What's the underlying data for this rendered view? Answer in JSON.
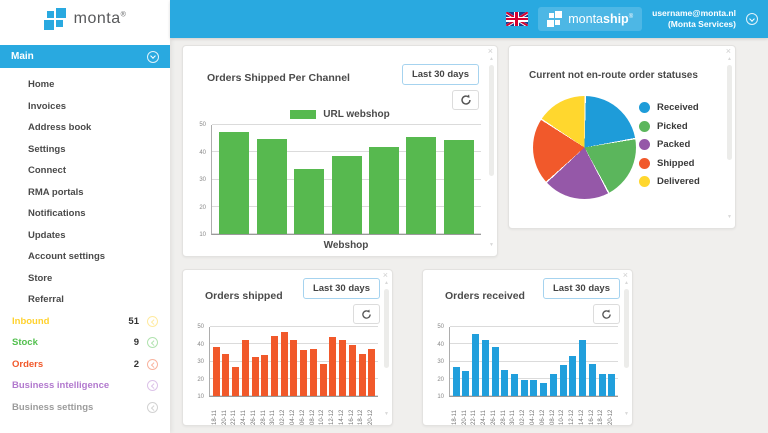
{
  "header": {
    "brand": "monta",
    "brand_reg": "®",
    "app_prefix": "monta",
    "app_suffix": "ship",
    "app_reg": "®",
    "user_email": "username@monta.nl",
    "user_org": "(Monta Services)"
  },
  "ui": {
    "close_glyph": "×",
    "scroll_up": "▲",
    "scroll_down": "▼"
  },
  "sidebar": {
    "main_label": "Main",
    "items": [
      "Home",
      "Invoices",
      "Address book",
      "Settings",
      "Connect",
      "RMA portals",
      "Notifications",
      "Updates",
      "Account settings",
      "Store",
      "Referral"
    ],
    "sections": [
      {
        "label": "Inbound",
        "count": "51",
        "color": "#FFD22E"
      },
      {
        "label": "Stock",
        "count": "9",
        "color": "#53C04F"
      },
      {
        "label": "Orders",
        "count": "2",
        "color": "#F1592B"
      },
      {
        "label": "Business intelligence",
        "count": "",
        "color": "#B279CE"
      },
      {
        "label": "Business settings",
        "count": "",
        "color": "#9C9C9C"
      }
    ]
  },
  "cards": {
    "shipped_per_channel": {
      "title": "Orders Shipped Per Channel",
      "range_button": "Last 30 days",
      "legend": "URL webshop",
      "xlabel": "Webshop"
    },
    "order_statuses": {
      "title": "Current not en-route order statuses"
    },
    "orders_shipped": {
      "title": "Orders shipped",
      "range_button": "Last 30 days"
    },
    "orders_received": {
      "title": "Orders received",
      "range_button": "Last 30 days"
    }
  },
  "chart_data": [
    {
      "type": "bar",
      "title": "Orders Shipped Per Channel",
      "legend": [
        "URL webshop"
      ],
      "xlabel": "Webshop",
      "yticks": [
        10,
        20,
        30,
        40,
        50
      ],
      "ylim": [
        10,
        50
      ],
      "values": [
        47.5,
        45,
        34,
        38.5,
        42,
        45.5,
        44.5
      ],
      "color": "#57B94F",
      "grid": true
    },
    {
      "type": "pie",
      "title": "Current not en-route order statuses",
      "labels": [
        "Received",
        "Picked",
        "Packed",
        "Shipped",
        "Delivered"
      ],
      "values": [
        22,
        20,
        21,
        21,
        16
      ],
      "colors": [
        "#1E9CD9",
        "#5BB65C",
        "#9558A8",
        "#F1592B",
        "#FFD72E"
      ],
      "legend_position": "right"
    },
    {
      "type": "bar",
      "title": "Orders shipped",
      "categories": [
        "18-11",
        "20-11",
        "22-11",
        "24-11",
        "26-11",
        "28-11",
        "30-11",
        "02-12",
        "04-12",
        "06-12",
        "08-12",
        "10-12",
        "12-12",
        "14-12",
        "16-12",
        "18-12",
        "20-12"
      ],
      "yticks": [
        10,
        20,
        30,
        40,
        50
      ],
      "ylim": [
        10,
        50
      ],
      "values": [
        38.5,
        34.5,
        27,
        42.5,
        32.5,
        34,
        45,
        47,
        42.5,
        36.5,
        37,
        28.5,
        44.5,
        42.5,
        39.5,
        34.5,
        37
      ],
      "color": "#F1592B",
      "grid": true
    },
    {
      "type": "bar",
      "title": "Orders received",
      "categories": [
        "18-11",
        "20-11",
        "22-11",
        "24-11",
        "26-11",
        "28-11",
        "30-11",
        "02-12",
        "04-12",
        "06-12",
        "08-12",
        "10-12",
        "12-12",
        "14-12",
        "16-12",
        "18-12",
        "20-12"
      ],
      "yticks": [
        10,
        20,
        30,
        40,
        50
      ],
      "ylim": [
        10,
        50
      ],
      "values": [
        27,
        24.5,
        46,
        42.5,
        38.5,
        25,
        22.5,
        19,
        19,
        17.5,
        22.5,
        28,
        33,
        42.5,
        28.5,
        22.5,
        22.5
      ],
      "color": "#219FDC",
      "grid": true
    }
  ]
}
